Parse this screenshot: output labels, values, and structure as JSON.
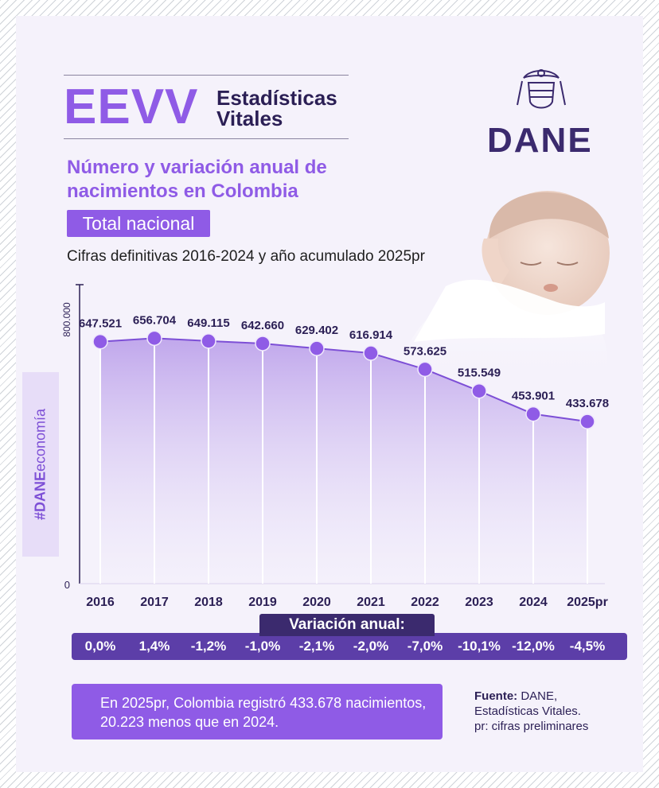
{
  "header": {
    "logo_text": "EEVV",
    "logo_subtitle_line1": "Estadísticas",
    "logo_subtitle_line2": "Vitales",
    "org_logo": "DANE"
  },
  "title_line1": "Número y variación anual de",
  "title_line2": "nacimientos en Colombia",
  "badge": "Total nacional",
  "subtitle": "Cifras definitivas 2016-2024 y año acumulado 2025pr",
  "side_tag_bold": "#DANE",
  "side_tag_rest": "economía",
  "chart_data": {
    "type": "area",
    "categories": [
      "2016",
      "2017",
      "2018",
      "2019",
      "2020",
      "2021",
      "2022",
      "2023",
      "2024",
      "2025pr"
    ],
    "values": [
      647521,
      656704,
      649115,
      642660,
      629402,
      616914,
      573625,
      515549,
      453901,
      433678
    ],
    "value_labels": [
      "647.521",
      "656.704",
      "649.115",
      "642.660",
      "629.402",
      "616.914",
      "573.625",
      "515.549",
      "453.901",
      "433.678"
    ],
    "ylim": [
      0,
      800000
    ],
    "y_tick_labels": [
      "0",
      "800.000"
    ],
    "colors": {
      "line": "#7d4fd6",
      "fill": "#c8b2f0",
      "point": "#8f5be6"
    }
  },
  "variation": {
    "title": "Variación anual:",
    "values": [
      "0,0%",
      "1,4%",
      "-1,2%",
      "-1,0%",
      "-2,1%",
      "-2,0%",
      "-7,0%",
      "-10,1%",
      "-12,0%",
      "-4,5%"
    ]
  },
  "summary": "En 2025pr, Colombia registró 433.678 nacimientos, 20.223 menos que en 2024.",
  "source": {
    "label": "Fuente:",
    "text1": "DANE,",
    "text2": "Estadísticas Vitales.",
    "text3": "pr: cifras preliminares"
  },
  "colors": {
    "accent": "#8f5be6",
    "dark": "#3b2a6e",
    "background": "#f5f2fb"
  }
}
